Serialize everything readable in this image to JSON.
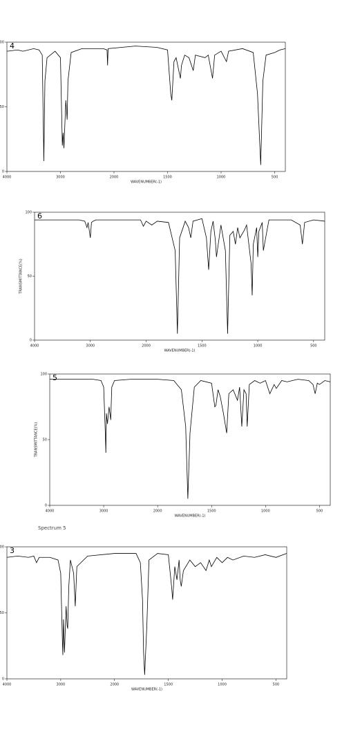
{
  "chart_data": [
    {
      "type": "line",
      "title": "4",
      "xlabel": "WAVENUMBER(-1)",
      "color": "#000000",
      "xlim": [
        4000,
        400
      ],
      "ylim": [
        0,
        100
      ],
      "xticks": [
        4000,
        3000,
        2000,
        1500,
        1000,
        500
      ],
      "yticks": [
        0,
        50,
        100
      ],
      "x": [
        4000,
        3800,
        3700,
        3500,
        3400,
        3340,
        3310,
        3290,
        3250,
        3100,
        3000,
        2965,
        2950,
        2935,
        2900,
        2875,
        2860,
        2800,
        2600,
        2200,
        2130,
        2120,
        2110,
        1800,
        1600,
        1500,
        1470,
        1460,
        1440,
        1420,
        1380,
        1370,
        1340,
        1300,
        1260,
        1240,
        1150,
        1120,
        1080,
        1060,
        1000,
        950,
        930,
        800,
        700,
        660,
        630,
        610,
        580,
        500,
        450,
        400
      ],
      "values": [
        93,
        94,
        93,
        95,
        94,
        90,
        8,
        70,
        88,
        93,
        88,
        20,
        30,
        18,
        55,
        40,
        70,
        92,
        95,
        95,
        94,
        82,
        95,
        97,
        96,
        94,
        60,
        55,
        85,
        88,
        72,
        82,
        90,
        88,
        78,
        90,
        88,
        90,
        72,
        90,
        93,
        85,
        93,
        95,
        92,
        60,
        5,
        70,
        90,
        92,
        94,
        95
      ]
    },
    {
      "type": "line",
      "title": "6",
      "xlabel": "WAVENUMBER(-1)",
      "ylabel": "TRANSMITTANCE(%)",
      "color": "#000000",
      "xlim": [
        4000,
        400
      ],
      "ylim": [
        0,
        100
      ],
      "xticks": [
        4000,
        3000,
        2000,
        1500,
        1000,
        500
      ],
      "yticks": [
        0,
        50,
        100
      ],
      "x": [
        4000,
        3600,
        3200,
        3100,
        3060,
        3040,
        3000,
        2980,
        2950,
        2900,
        2500,
        2100,
        2050,
        2000,
        1950,
        1900,
        1800,
        1740,
        1720,
        1700,
        1650,
        1620,
        1600,
        1580,
        1500,
        1460,
        1440,
        1420,
        1400,
        1380,
        1370,
        1330,
        1290,
        1270,
        1250,
        1220,
        1200,
        1180,
        1160,
        1120,
        1100,
        1060,
        1050,
        1040,
        1010,
        1000,
        990,
        960,
        950,
        900,
        700,
        620,
        600,
        580,
        500,
        400
      ],
      "values": [
        94,
        94,
        94,
        93,
        88,
        92,
        80,
        92,
        93,
        94,
        94,
        94,
        89,
        93,
        90,
        93,
        92,
        70,
        5,
        80,
        93,
        88,
        80,
        93,
        95,
        80,
        55,
        85,
        93,
        78,
        65,
        90,
        70,
        5,
        82,
        85,
        75,
        88,
        80,
        86,
        90,
        60,
        35,
        75,
        88,
        65,
        85,
        92,
        70,
        94,
        94,
        90,
        75,
        92,
        94,
        93
      ]
    },
    {
      "type": "line",
      "title": "5",
      "xlabel": "WAVENUMBER(-1)",
      "ylabel": "TRANSMITTANCE(%)",
      "note": "Spectrum 5",
      "color": "#000000",
      "xlim": [
        4000,
        400
      ],
      "ylim": [
        0,
        100
      ],
      "xticks": [
        4000,
        3000,
        2000,
        1500,
        1000,
        500
      ],
      "yticks": [
        0,
        50,
        100
      ],
      "x": [
        4000,
        3600,
        3200,
        3050,
        3000,
        2970,
        2960,
        2950,
        2930,
        2900,
        2870,
        2850,
        2800,
        2500,
        2000,
        1850,
        1780,
        1740,
        1720,
        1700,
        1660,
        1600,
        1500,
        1470,
        1460,
        1440,
        1420,
        1390,
        1370,
        1360,
        1340,
        1300,
        1260,
        1240,
        1220,
        1200,
        1180,
        1170,
        1150,
        1100,
        1050,
        1000,
        960,
        920,
        900,
        850,
        800,
        700,
        600,
        560,
        540,
        520,
        500,
        450,
        400
      ],
      "values": [
        96,
        96,
        96,
        95,
        90,
        55,
        40,
        70,
        62,
        75,
        65,
        90,
        95,
        96,
        96,
        95,
        88,
        60,
        5,
        55,
        90,
        95,
        93,
        75,
        76,
        88,
        83,
        70,
        60,
        55,
        85,
        88,
        80,
        90,
        60,
        88,
        85,
        60,
        92,
        95,
        93,
        95,
        85,
        92,
        89,
        95,
        94,
        96,
        95,
        92,
        85,
        93,
        92,
        95,
        94
      ]
    },
    {
      "type": "line",
      "title": "3",
      "xlabel": "WAVENUMBER(-1)",
      "color": "#000000",
      "xlim": [
        4000,
        400
      ],
      "ylim": [
        0,
        100
      ],
      "xticks": [
        4000,
        3000,
        2000,
        1500,
        1000,
        500
      ],
      "yticks": [
        0,
        50,
        100
      ],
      "x": [
        4000,
        3800,
        3600,
        3500,
        3450,
        3400,
        3200,
        3050,
        3000,
        2970,
        2960,
        2950,
        2930,
        2900,
        2880,
        2870,
        2850,
        2820,
        2760,
        2730,
        2700,
        2500,
        2000,
        1800,
        1760,
        1740,
        1730,
        1720,
        1700,
        1680,
        1600,
        1500,
        1470,
        1460,
        1440,
        1420,
        1400,
        1390,
        1380,
        1360,
        1300,
        1250,
        1200,
        1150,
        1120,
        1100,
        1050,
        1000,
        950,
        900,
        800,
        700,
        600,
        500,
        400
      ],
      "values": [
        92,
        93,
        92,
        93,
        88,
        92,
        92,
        90,
        80,
        30,
        18,
        45,
        20,
        55,
        40,
        38,
        70,
        90,
        80,
        55,
        85,
        93,
        95,
        95,
        88,
        60,
        20,
        3,
        40,
        90,
        95,
        94,
        70,
        60,
        85,
        75,
        90,
        75,
        70,
        82,
        90,
        85,
        88,
        82,
        90,
        85,
        92,
        88,
        92,
        90,
        93,
        92,
        94,
        92,
        95
      ]
    }
  ]
}
